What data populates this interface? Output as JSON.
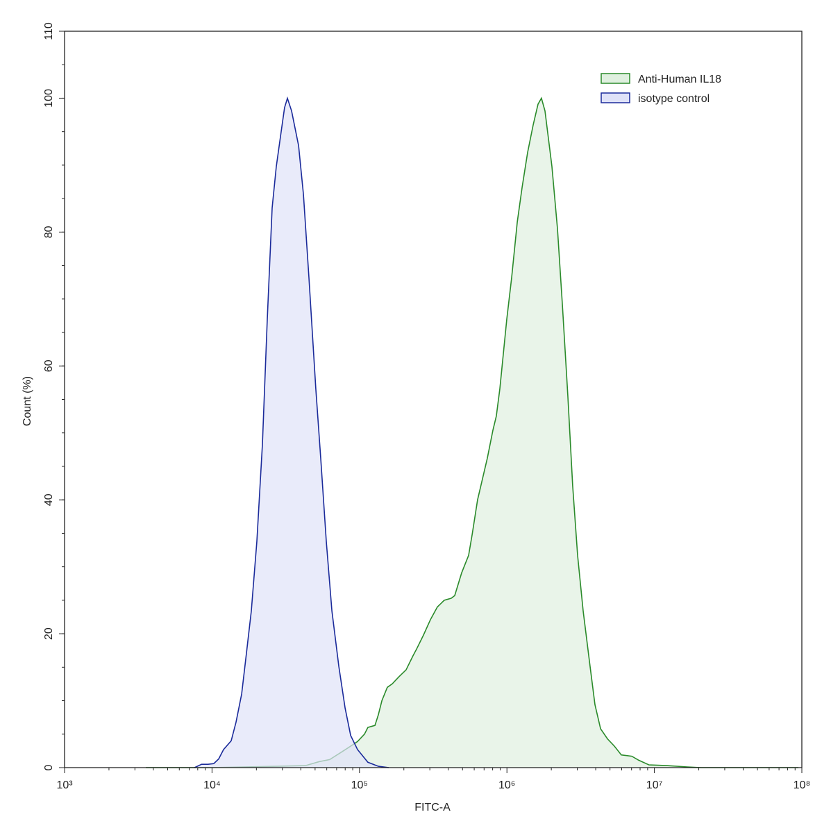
{
  "chart_data": {
    "type": "histogram-overlay",
    "x_label": "FITC-A",
    "y_label": "Count (%)",
    "x_log": true,
    "xlim": [
      1000,
      100000000
    ],
    "xticks": [
      {
        "value": 1000,
        "label": "10³"
      },
      {
        "value": 10000,
        "label": "10⁴"
      },
      {
        "value": 100000,
        "label": "10⁵"
      },
      {
        "value": 1000000,
        "label": "10⁶"
      },
      {
        "value": 10000000,
        "label": "10⁷"
      },
      {
        "value": 100000000,
        "label": "10⁸"
      }
    ],
    "ylim": [
      0,
      110
    ],
    "yticks": [
      0,
      20,
      40,
      60,
      80,
      100,
      110
    ],
    "legend": "top-right",
    "series": [
      {
        "name": "Anti-Human IL18",
        "color": "#2a8a2a",
        "fill": "#dff0df",
        "x": [
          3556,
          9430,
          27880,
          43010,
          53440,
          62820,
          73960,
          87100,
          97050,
          108100,
          114000,
          127300,
          134300,
          141900,
          154500,
          166700,
          185800,
          207000,
          230700,
          243800,
          271600,
          302700,
          337300,
          375800,
          418800,
          442600,
          493200,
          549600,
          580700,
          632400,
          682300,
          736200,
          803500,
          847200,
          895300,
          997700,
          1076000,
          1175000,
          1268000,
          1381000,
          1507000,
          1626000,
          1714000,
          1811000,
          2018000,
          2202000,
          2377000,
          2588000,
          2793000,
          3014000,
          3289000,
          3664000,
          3954000,
          4315000,
          4808000,
          5358000,
          5971000,
          7031000,
          7834000,
          9204000,
          12070000,
          16710000,
          20750000,
          94700000
        ],
        "values": [
          0,
          0,
          0.2,
          0.3,
          0.9,
          1.2,
          2.2,
          3.2,
          3.9,
          5.0,
          6.0,
          6.3,
          7.9,
          10.0,
          12.0,
          12.5,
          13.6,
          14.6,
          16.7,
          17.7,
          19.8,
          22.1,
          24.0,
          25.0,
          25.3,
          25.7,
          29.1,
          31.7,
          34.8,
          40.0,
          43.1,
          46.2,
          50.4,
          52.5,
          56.6,
          67.0,
          73.2,
          81.5,
          86.7,
          91.9,
          96.0,
          99.1,
          100,
          98.1,
          89.8,
          80.5,
          69.1,
          55.6,
          42.1,
          31.7,
          23.4,
          15.1,
          9.4,
          5.8,
          4.3,
          3.2,
          1.9,
          1.7,
          1.1,
          0.4,
          0.3,
          0.1,
          0,
          0
        ]
      },
      {
        "name": "isotype control",
        "color": "#1a2a9a",
        "fill": "#dfe2f8",
        "x": [
          7600,
          8500,
          9400,
          10280,
          11100,
          11970,
          13490,
          14550,
          15880,
          17130,
          18470,
          20140,
          21980,
          23710,
          25580,
          27300,
          29450,
          31050,
          32450,
          34640,
          38630,
          41690,
          45420,
          50590,
          54590,
          59570,
          65010,
          72440,
          79860,
          87100,
          97050,
          114000,
          134300,
          158100
        ],
        "values": [
          0,
          0.5,
          0.5,
          0.6,
          1.3,
          2.7,
          4.0,
          6.8,
          11.0,
          17.2,
          23.4,
          33.8,
          48.3,
          67.0,
          83.6,
          89.8,
          95.0,
          98.6,
          100,
          98.1,
          92.9,
          85.6,
          73.2,
          56.6,
          46.2,
          33.8,
          23.4,
          15.1,
          8.9,
          4.8,
          2.7,
          0.8,
          0.2,
          0
        ]
      }
    ]
  }
}
